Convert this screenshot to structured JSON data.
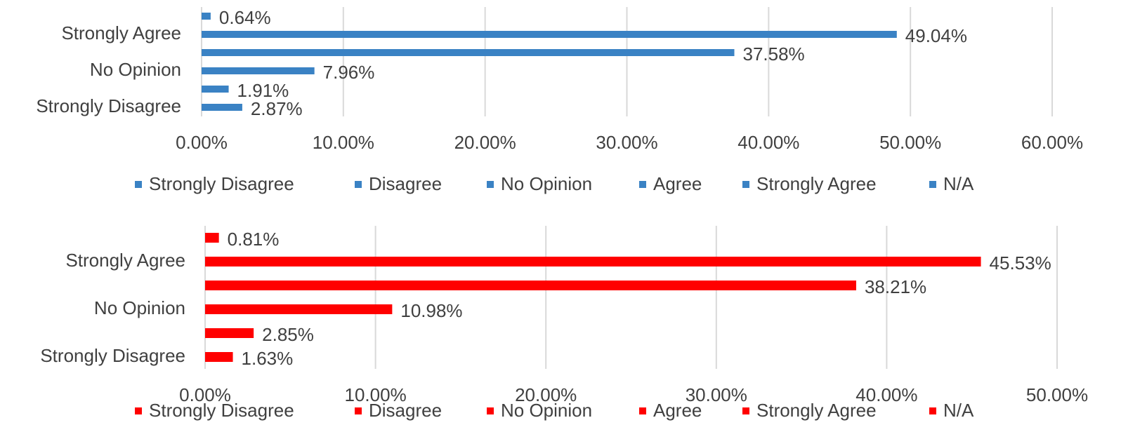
{
  "chart_data": [
    {
      "type": "bar",
      "orientation": "horizontal",
      "color": "#3a82c4",
      "categories": [
        "Strongly Disagree",
        null,
        "No Opinion",
        null,
        "Strongly Agree",
        null
      ],
      "legend": [
        "Strongly Disagree",
        "Disagree",
        "No Opinion",
        "Agree",
        "Strongly Agree",
        "N/A"
      ],
      "values": [
        2.87,
        1.91,
        7.96,
        37.58,
        49.04,
        0.64
      ],
      "value_labels": [
        "2.87%",
        "1.91%",
        "7.96%",
        "37.58%",
        "49.04%",
        "0.64%"
      ],
      "xlim": [
        0,
        60
      ],
      "xticks": [
        {
          "value": 0,
          "label": "0.00%"
        },
        {
          "value": 10,
          "label": "10.00%"
        },
        {
          "value": 20,
          "label": "20.00%"
        },
        {
          "value": 30,
          "label": "30.00%"
        },
        {
          "value": 40,
          "label": "40.00%"
        },
        {
          "value": 50,
          "label": "50.00%"
        },
        {
          "value": 60,
          "label": "60.00%"
        }
      ],
      "grid": true
    },
    {
      "type": "bar",
      "orientation": "horizontal",
      "color": "#ff0000",
      "categories": [
        "Strongly Disagree",
        null,
        "No Opinion",
        null,
        "Strongly Agree",
        null
      ],
      "legend": [
        "Strongly Disagree",
        "Disagree",
        "No Opinion",
        "Agree",
        "Strongly Agree",
        "N/A"
      ],
      "values": [
        1.63,
        2.85,
        10.98,
        38.21,
        45.53,
        0.81
      ],
      "value_labels": [
        "1.63%",
        "2.85%",
        "10.98%",
        "38.21%",
        "45.53%",
        "0.81%"
      ],
      "xlim": [
        0,
        50
      ],
      "xticks": [
        {
          "value": 0,
          "label": "0.00%"
        },
        {
          "value": 10,
          "label": "10.00%"
        },
        {
          "value": 20,
          "label": "20.00%"
        },
        {
          "value": 30,
          "label": "30.00%"
        },
        {
          "value": 40,
          "label": "40.00%"
        },
        {
          "value": 50,
          "label": "50.00%"
        }
      ],
      "grid": true
    }
  ]
}
